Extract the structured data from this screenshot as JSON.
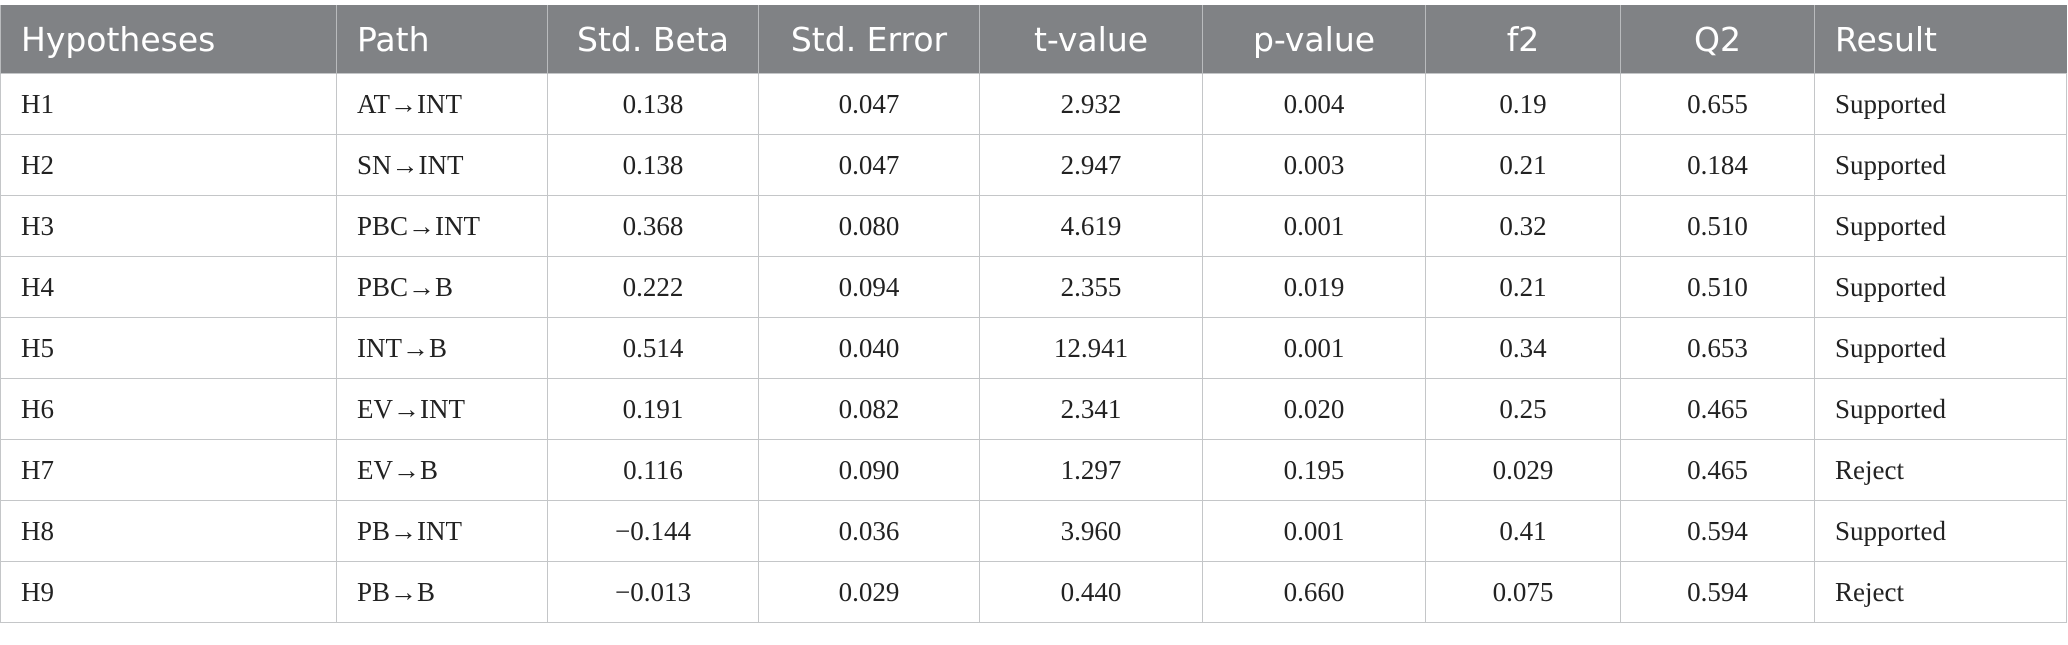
{
  "table": {
    "header": [
      "Hypotheses",
      "Path",
      "Std. Beta",
      "Std. Error",
      "t-value",
      "p-value",
      "f2",
      "Q2",
      "Result"
    ],
    "rows": [
      [
        "H1",
        "AT→INT",
        "0.138",
        "0.047",
        "2.932",
        "0.004",
        "0.19",
        "0.655",
        "Supported"
      ],
      [
        "H2",
        "SN→INT",
        "0.138",
        "0.047",
        "2.947",
        "0.003",
        "0.21",
        "0.184",
        "Supported"
      ],
      [
        "H3",
        "PBC→INT",
        "0.368",
        "0.080",
        "4.619",
        "0.001",
        "0.32",
        "0.510",
        "Supported"
      ],
      [
        "H4",
        "PBC→B",
        "0.222",
        "0.094",
        "2.355",
        "0.019",
        "0.21",
        "0.510",
        "Supported"
      ],
      [
        "H5",
        "INT→B",
        "0.514",
        "0.040",
        "12.941",
        "0.001",
        "0.34",
        "0.653",
        "Supported"
      ],
      [
        "H6",
        "EV→INT",
        "0.191",
        "0.082",
        "2.341",
        "0.020",
        "0.25",
        "0.465",
        "Supported"
      ],
      [
        "H7",
        "EV→B",
        "0.116",
        "0.090",
        "1.297",
        "0.195",
        "0.029",
        "0.465",
        "Reject"
      ],
      [
        "H8",
        "PB→INT",
        "−0.144",
        "0.036",
        "3.960",
        "0.001",
        "0.41",
        "0.594",
        "Supported"
      ],
      [
        "H9",
        "PB→B",
        "−0.013",
        "0.029",
        "0.440",
        "0.660",
        "0.075",
        "0.594",
        "Reject"
      ]
    ]
  }
}
